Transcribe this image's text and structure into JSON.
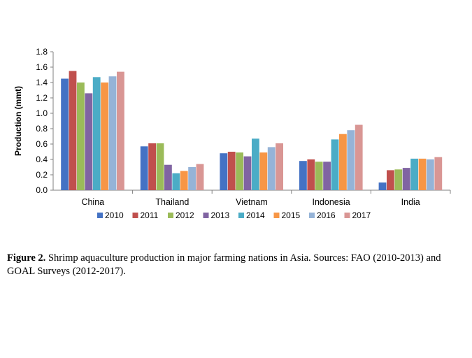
{
  "chart_data": {
    "type": "bar",
    "title": "",
    "xlabel": "",
    "ylabel": "Production (mmt)",
    "ylim": [
      0,
      1.8
    ],
    "yticks": [
      "0.0",
      "0.2",
      "0.4",
      "0.6",
      "0.8",
      "1.0",
      "1.2",
      "1.4",
      "1.6",
      "1.8"
    ],
    "grid": false,
    "legend_position": "bottom",
    "categories": [
      "China",
      "Thailand",
      "Vietnam",
      "Indonesia",
      "India"
    ],
    "series": [
      {
        "name": "2010",
        "color": "#4472C4",
        "values": [
          1.45,
          0.57,
          0.48,
          0.38,
          0.1
        ]
      },
      {
        "name": "2011",
        "color": "#C0504D",
        "values": [
          1.55,
          0.61,
          0.5,
          0.4,
          0.26
        ]
      },
      {
        "name": "2012",
        "color": "#9BBB59",
        "values": [
          1.4,
          0.61,
          0.49,
          0.37,
          0.27
        ]
      },
      {
        "name": "2013",
        "color": "#8064A2",
        "values": [
          1.26,
          0.33,
          0.44,
          0.37,
          0.29
        ]
      },
      {
        "name": "2014",
        "color": "#4BACC6",
        "values": [
          1.47,
          0.22,
          0.67,
          0.66,
          0.41
        ]
      },
      {
        "name": "2015",
        "color": "#F79646",
        "values": [
          1.4,
          0.25,
          0.49,
          0.73,
          0.41
        ]
      },
      {
        "name": "2016",
        "color": "#95B3D7",
        "values": [
          1.48,
          0.3,
          0.56,
          0.78,
          0.4
        ]
      },
      {
        "name": "2017",
        "color": "#D99694",
        "values": [
          1.54,
          0.34,
          0.61,
          0.85,
          0.43
        ]
      }
    ]
  },
  "caption": {
    "label": "Figure 2.",
    "text": " Shrimp aquaculture production in major farming nations in Asia. Sources: FAO (2010-2013) and GOAL Surveys (2012-2017)."
  }
}
